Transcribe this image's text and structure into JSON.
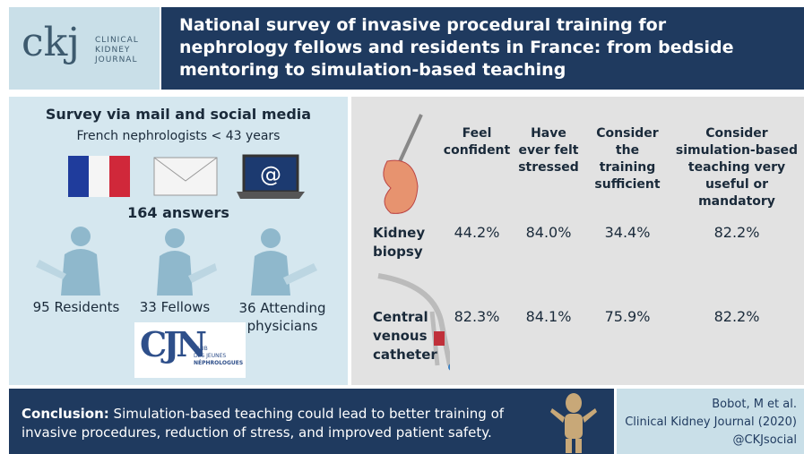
{
  "logo": {
    "mark": "ckj",
    "lines": [
      "CLINICAL",
      "KIDNEY",
      "JOURNAL"
    ]
  },
  "header": {
    "title": "National survey of invasive procedural training for nephrology fellows and residents in France: from bedside mentoring to simulation-based teaching"
  },
  "survey": {
    "title": "Survey via mail and social media",
    "subtitle": "French nephrologists < 43 years",
    "laptop_symbol": "@",
    "answers": "164 answers",
    "groups": [
      "95 Residents",
      "33 Fellows",
      "36 Attending physicians"
    ],
    "club": {
      "mark": "CJN",
      "lines": [
        "CLUB",
        "DES JEUNES",
        "NÉPHROLOGUES"
      ]
    }
  },
  "table": {
    "columns": [
      "Feel confident",
      "Have ever felt stressed",
      "Consider the training sufficient",
      "Consider simulation-based teaching very useful or mandatory"
    ],
    "rows": [
      {
        "label": "Kidney biopsy",
        "values": [
          "44.2%",
          "84.0%",
          "34.4%",
          "82.2%"
        ]
      },
      {
        "label": "Central venous catheter",
        "values": [
          "82.3%",
          "84.1%",
          "75.9%",
          "82.2%"
        ]
      }
    ]
  },
  "footer": {
    "conclusion_label": "Conclusion:",
    "conclusion": "Simulation-based teaching could lead to better training of invasive procedures, reduction of stress, and improved patient safety.",
    "citation": [
      "Bobot, M et al.",
      "Clinical Kidney Journal (2020)",
      "@CKJsocial"
    ]
  }
}
